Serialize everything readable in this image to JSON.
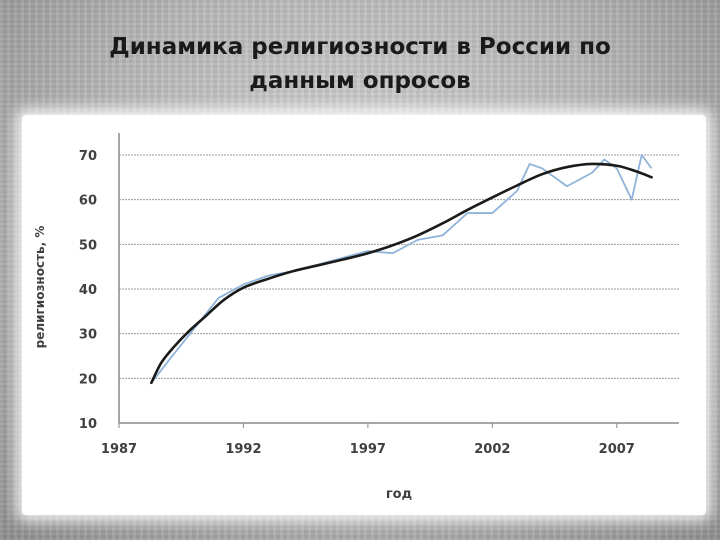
{
  "slide": {
    "title_line1": "Динамика религиозности в России по",
    "title_line2": "данным опросов"
  },
  "chart_data": {
    "type": "line",
    "xlabel": "год",
    "ylabel": "религиозность, %",
    "xlim": [
      1987,
      2009.5
    ],
    "ylim": [
      10,
      70
    ],
    "x_ticks": [
      1987,
      1992,
      1997,
      2002,
      2007
    ],
    "y_ticks": [
      10,
      20,
      30,
      40,
      50,
      60,
      70
    ],
    "grid": true,
    "colors": {
      "raw": "#8fb3d9",
      "trend": "#1a1a1a",
      "grid": "#9a9a9a"
    },
    "series": [
      {
        "x": [
          1988.3,
          1989,
          1990,
          1991,
          1992,
          1993,
          1994,
          1995,
          1996,
          1997,
          1998,
          1999,
          2000,
          2001,
          2002,
          2003,
          2003.5,
          2004,
          2005,
          2006,
          2006.5,
          2007,
          2007.6,
          2008,
          2008.4
        ],
        "y": [
          19,
          24,
          31,
          38,
          41,
          43,
          44,
          45.5,
          47,
          48.5,
          48,
          51,
          52,
          57,
          57,
          62,
          68,
          67,
          63,
          66,
          69,
          67,
          60,
          70,
          67
        ]
      },
      {
        "x": [
          1988.3,
          1988.7,
          1989.2,
          1989.8,
          1990.5,
          1991.2,
          1992,
          1993,
          1994,
          1995,
          1996,
          1997,
          1998,
          1999,
          2000,
          2001,
          2002,
          2003,
          2004,
          2005,
          2006,
          2007,
          2007.8,
          2008.4
        ],
        "y": [
          19,
          23.5,
          27,
          30.5,
          34,
          37.5,
          40.3,
          42.3,
          44,
          45.3,
          46.6,
          48,
          49.8,
          52,
          54.7,
          57.7,
          60.5,
          63.2,
          65.7,
          67.3,
          68,
          67.6,
          66.3,
          65
        ]
      }
    ]
  }
}
